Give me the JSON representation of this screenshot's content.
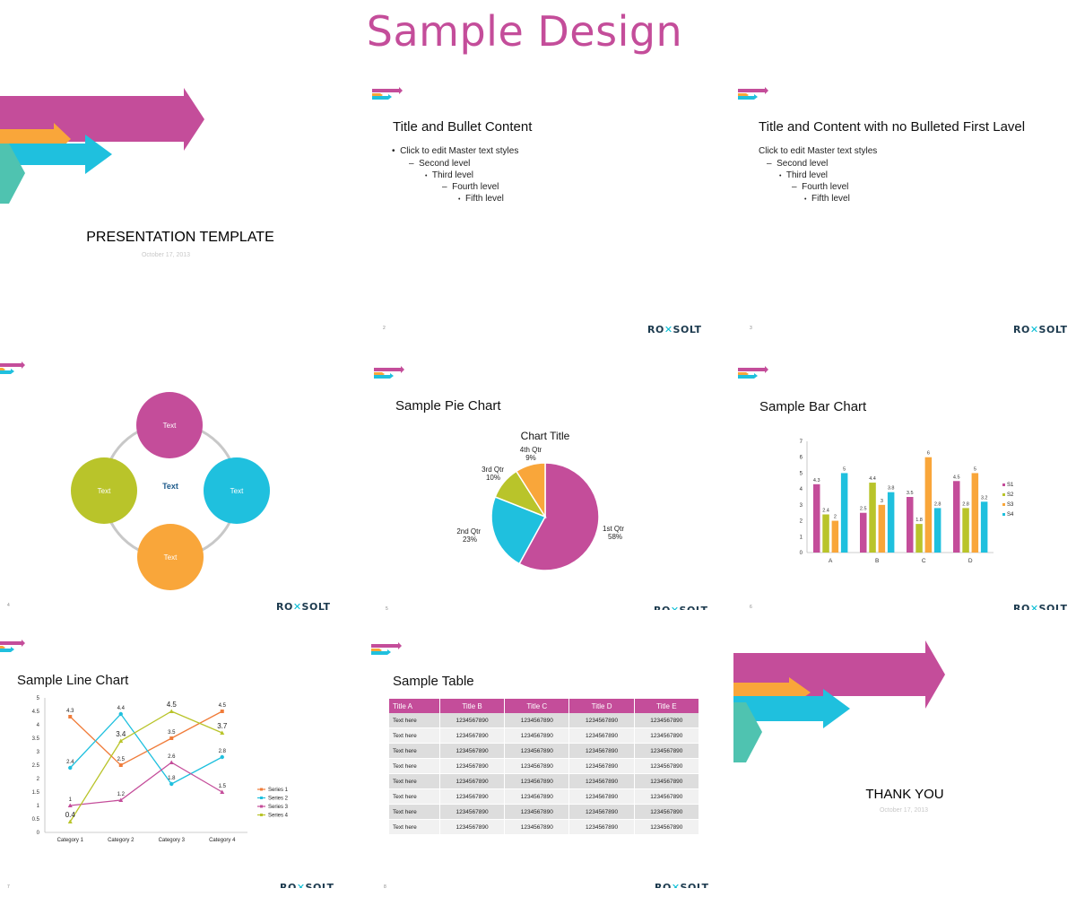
{
  "page": {
    "title": "Sample Design"
  },
  "brand": {
    "part1": "RO",
    "part2": "SOLT",
    "mark": "✕"
  },
  "slides": {
    "s1": {
      "title": "PRESENTATION TEMPLATE",
      "date": "October 17, 2013"
    },
    "s2": {
      "title": "Title and Bullet Content",
      "num": "2",
      "bullets": [
        "Click to edit Master text styles",
        "Second level",
        "Third level",
        "Fourth level",
        "Fifth level"
      ],
      "markers": [
        "•",
        "–",
        "•",
        "–",
        "•"
      ]
    },
    "s3": {
      "title": "Title and Content with no Bulleted First Lavel",
      "num": "3",
      "bullets": [
        "Click to edit Master text styles",
        "Second level",
        "Third level",
        "Fourth level",
        "Fifth level"
      ],
      "markers": [
        "",
        "–",
        "•",
        "–",
        "•"
      ]
    },
    "s4": {
      "num": "4",
      "center": "Text",
      "circles": [
        "Text",
        "Text",
        "Text",
        "Text"
      ]
    },
    "s5": {
      "title": "Sample Pie Chart",
      "num": "5"
    },
    "s6": {
      "title": "Sample Bar Chart",
      "num": "6"
    },
    "s7": {
      "title": "Sample Line Chart",
      "num": "7"
    },
    "s8": {
      "title": "Sample Table",
      "num": "8",
      "headers": [
        "Title A",
        "Title B",
        "Title C",
        "Title D",
        "Title E"
      ],
      "rows": [
        [
          "Text here",
          "1234567890",
          "1234567890",
          "1234567890",
          "1234567890"
        ],
        [
          "Text here",
          "1234567890",
          "1234567890",
          "1234567890",
          "1234567890"
        ],
        [
          "Text here",
          "1234567890",
          "1234567890",
          "1234567890",
          "1234567890"
        ],
        [
          "Text here",
          "1234567890",
          "1234567890",
          "1234567890",
          "1234567890"
        ],
        [
          "Text here",
          "1234567890",
          "1234567890",
          "1234567890",
          "1234567890"
        ],
        [
          "Text here",
          "1234567890",
          "1234567890",
          "1234567890",
          "1234567890"
        ],
        [
          "Text here",
          "1234567890",
          "1234567890",
          "1234567890",
          "1234567890"
        ],
        [
          "Text here",
          "1234567890",
          "1234567890",
          "1234567890",
          "1234567890"
        ]
      ]
    },
    "s9": {
      "title": "THANK YOU",
      "date": "October 17, 2013"
    }
  },
  "colors": {
    "magenta": "#c44d9a",
    "orange": "#f9a63a",
    "cyan": "#1fc0de",
    "teal": "#4fc3b0",
    "lime": "#b9c42a",
    "navy": "#1c3a4e"
  },
  "chart_data": [
    {
      "type": "pie",
      "title": "Chart Title",
      "labels": [
        "1st Qtr",
        "2nd Qtr",
        "3rd Qtr",
        "4th Qtr"
      ],
      "values": [
        58,
        23,
        10,
        9
      ],
      "value_labels": [
        "58%",
        "23%",
        "10%",
        "9%"
      ],
      "colors": [
        "#c44d9a",
        "#1fc0de",
        "#b9c42a",
        "#f9a63a"
      ]
    },
    {
      "type": "bar",
      "categories": [
        "A",
        "B",
        "C",
        "D"
      ],
      "ylim": [
        0,
        7
      ],
      "yticks": [
        0,
        1,
        2,
        3,
        4,
        5,
        6,
        7
      ],
      "legend": "right",
      "series": [
        {
          "name": "S1",
          "values": [
            4.3,
            2.5,
            3.5,
            4.5
          ],
          "color": "#c44d9a"
        },
        {
          "name": "S2",
          "values": [
            2.4,
            4.4,
            1.8,
            2.8
          ],
          "color": "#b9c42a"
        },
        {
          "name": "S3",
          "values": [
            2,
            3,
            6,
            5
          ],
          "color": "#f9a63a"
        },
        {
          "name": "S4",
          "values": [
            5,
            3.8,
            2.8,
            3.2
          ],
          "color": "#1fc0de"
        }
      ]
    },
    {
      "type": "line",
      "categories": [
        "Category 1",
        "Category 2",
        "Category 3",
        "Category 4"
      ],
      "ylim": [
        0,
        5
      ],
      "yticks": [
        0,
        0.5,
        1,
        1.5,
        2,
        2.5,
        3,
        3.5,
        4,
        4.5,
        5
      ],
      "legend": "right",
      "series": [
        {
          "name": "Series 1",
          "values": [
            4.3,
            2.5,
            3.5,
            4.5
          ],
          "labels": [
            "4.3",
            "2.5",
            "3.5",
            "4.5"
          ],
          "color": "#f07c3a"
        },
        {
          "name": "Series 2",
          "values": [
            2.4,
            4.4,
            1.8,
            2.8
          ],
          "labels": [
            "2.4",
            "4.4",
            "1.8",
            "2.8"
          ],
          "color": "#1fc0de"
        },
        {
          "name": "Series 3",
          "values": [
            1,
            1.2,
            2.6,
            1.5
          ],
          "labels": [
            "1",
            "1.2",
            "2.6",
            "1.5"
          ],
          "color": "#c44d9a"
        },
        {
          "name": "Series 4",
          "values": [
            0.4,
            3.4,
            4.5,
            3.7
          ],
          "labels": [
            "0.4",
            "3.4",
            "4.5",
            "3.7"
          ],
          "color": "#b9c42a"
        }
      ]
    }
  ]
}
